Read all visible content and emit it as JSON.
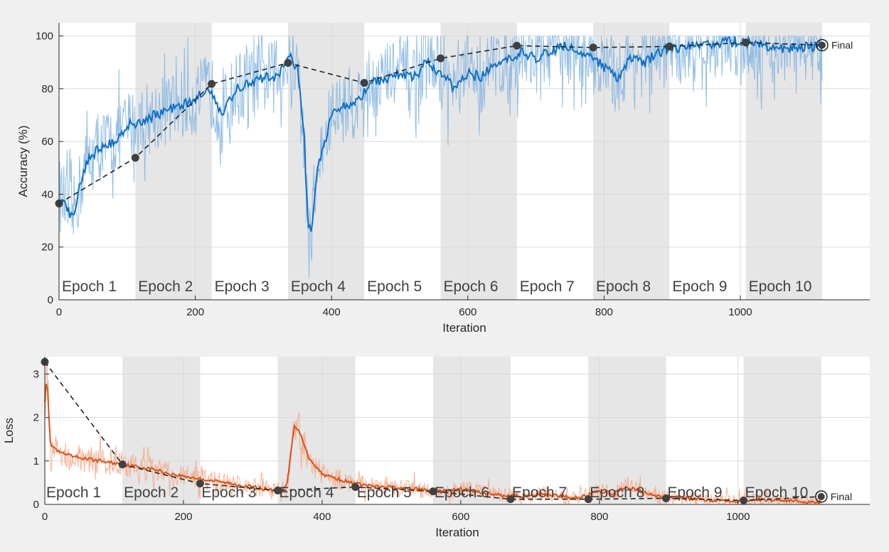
{
  "colors": {
    "background": "#f0f0f0",
    "plot_bg": "#ffffff",
    "epoch_shade": "#e6e6e6",
    "grid": "#d9d9d9",
    "accuracy_raw": "#7fb3e0",
    "accuracy_smoothed": "#0f6fc6",
    "loss_raw": "#f4a582",
    "loss_smoothed": "#d95319",
    "validation": "#404040"
  },
  "chart_data": [
    {
      "type": "line",
      "name": "accuracy-chart",
      "xlabel": "Iteration",
      "ylabel": "Accuracy (%)",
      "xlim": [
        0,
        1190
      ],
      "ylim": [
        0,
        105
      ],
      "xticks": [
        0,
        200,
        400,
        600,
        800,
        1000
      ],
      "yticks": [
        0,
        20,
        40,
        60,
        80,
        100
      ],
      "grid": true,
      "epoch_bounds": [
        0,
        112,
        224,
        336,
        448,
        560,
        672,
        784,
        896,
        1008,
        1120
      ],
      "epoch_labels": [
        "Epoch 1",
        "Epoch 2",
        "Epoch 3",
        "Epoch 4",
        "Epoch 5",
        "Epoch 6",
        "Epoch 7",
        "Epoch 8",
        "Epoch 9",
        "Epoch 10"
      ],
      "final_label": "Final",
      "final_point": [
        1120,
        96.5
      ],
      "series": [
        {
          "role": "training-smoothed",
          "x": [
            0,
            10,
            20,
            30,
            40,
            60,
            80,
            100,
            120,
            140,
            160,
            180,
            200,
            220,
            240,
            260,
            280,
            300,
            320,
            340,
            350,
            360,
            365,
            370,
            380,
            400,
            420,
            440,
            460,
            480,
            500,
            520,
            540,
            560,
            580,
            600,
            620,
            640,
            660,
            680,
            700,
            720,
            740,
            760,
            780,
            800,
            820,
            840,
            860,
            880,
            900,
            920,
            940,
            960,
            980,
            1000,
            1020,
            1040,
            1060,
            1080,
            1100,
            1120
          ],
          "y": [
            40,
            36,
            31,
            42,
            52,
            58,
            60,
            66,
            68,
            70,
            72,
            74,
            76,
            80,
            70,
            80,
            82,
            84,
            85,
            92,
            88,
            60,
            30,
            26,
            50,
            70,
            74,
            76,
            82,
            84,
            86,
            84,
            90,
            86,
            80,
            86,
            84,
            90,
            92,
            94,
            92,
            94,
            96,
            95,
            93,
            88,
            84,
            92,
            90,
            94,
            95,
            96,
            97,
            97,
            98,
            98,
            97,
            96,
            95,
            96,
            96,
            96
          ]
        },
        {
          "role": "validation",
          "x": [
            0,
            112,
            224,
            336,
            448,
            560,
            672,
            784,
            896,
            1008,
            1120
          ],
          "y": [
            36.5,
            53.8,
            81.8,
            89.8,
            82.2,
            91.5,
            96.3,
            95.6,
            96.0,
            97.5,
            96.5
          ]
        }
      ]
    },
    {
      "type": "line",
      "name": "loss-chart",
      "xlabel": "Iteration",
      "ylabel": "Loss",
      "xlim": [
        0,
        1190
      ],
      "ylim": [
        0,
        3.4
      ],
      "xticks": [
        0,
        200,
        400,
        600,
        800,
        1000
      ],
      "yticks": [
        0,
        1,
        2,
        3
      ],
      "grid": true,
      "epoch_bounds": [
        0,
        112,
        224,
        336,
        448,
        560,
        672,
        784,
        896,
        1008,
        1120
      ],
      "epoch_labels": [
        "Epoch 1",
        "Epoch 2",
        "Epoch 3",
        "Epoch 4",
        "Epoch 5",
        "Epoch 6",
        "Epoch 7",
        "Epoch 8",
        "Epoch 9",
        "Epoch 10"
      ],
      "final_label": "Final",
      "final_point": [
        1120,
        0.18
      ],
      "series": [
        {
          "role": "training-smoothed",
          "x": [
            0,
            3,
            8,
            20,
            40,
            60,
            80,
            100,
            120,
            140,
            160,
            180,
            200,
            220,
            240,
            260,
            280,
            300,
            320,
            340,
            350,
            355,
            360,
            370,
            380,
            400,
            420,
            440,
            460,
            480,
            500,
            520,
            540,
            560,
            580,
            600,
            620,
            640,
            660,
            680,
            700,
            720,
            740,
            760,
            780,
            800,
            820,
            840,
            860,
            880,
            900,
            920,
            940,
            960,
            980,
            1000,
            1020,
            1040,
            1060,
            1080,
            1100,
            1120
          ],
          "y": [
            2.4,
            3.0,
            1.4,
            1.2,
            1.1,
            1.05,
            1.0,
            0.95,
            0.9,
            0.85,
            0.8,
            0.7,
            0.65,
            0.6,
            0.55,
            0.5,
            0.45,
            0.4,
            0.35,
            0.3,
            0.5,
            1.2,
            1.8,
            1.6,
            1.1,
            0.7,
            0.6,
            0.5,
            0.45,
            0.4,
            0.4,
            0.35,
            0.35,
            0.3,
            0.3,
            0.35,
            0.3,
            0.25,
            0.2,
            0.2,
            0.18,
            0.25,
            0.2,
            0.15,
            0.2,
            0.3,
            0.25,
            0.4,
            0.3,
            0.2,
            0.15,
            0.15,
            0.12,
            0.1,
            0.1,
            0.08,
            0.12,
            0.1,
            0.1,
            0.08,
            0.06,
            0.05
          ]
        },
        {
          "role": "validation",
          "x": [
            0,
            112,
            224,
            336,
            448,
            560,
            672,
            784,
            896,
            1008,
            1120
          ],
          "y": [
            3.28,
            0.92,
            0.48,
            0.32,
            0.4,
            0.3,
            0.12,
            0.12,
            0.14,
            0.09,
            0.18
          ]
        }
      ]
    }
  ]
}
